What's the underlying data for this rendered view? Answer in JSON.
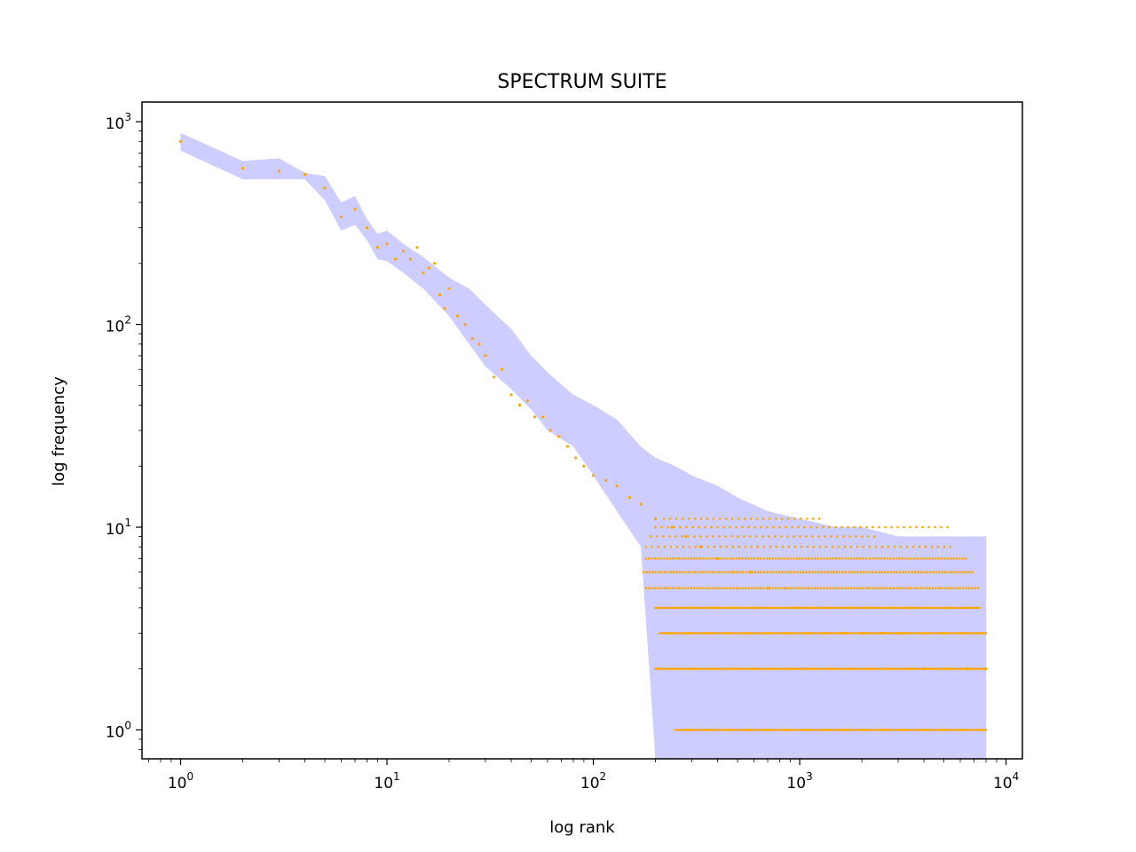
{
  "chart_data": {
    "type": "scatter",
    "title": "SPECTRUM SUITE",
    "xlabel": "log rank",
    "ylabel": "log frequency",
    "xscale": "log",
    "yscale": "log",
    "xlim": [
      0.65,
      12000
    ],
    "ylim": [
      0.72,
      1250
    ],
    "grid": false,
    "legend": "none",
    "x_tick_labels": [
      {
        "base": "10",
        "exp": "0",
        "value": 1
      },
      {
        "base": "10",
        "exp": "1",
        "value": 10
      },
      {
        "base": "10",
        "exp": "2",
        "value": 100
      },
      {
        "base": "10",
        "exp": "3",
        "value": 1000
      },
      {
        "base": "10",
        "exp": "4",
        "value": 10000
      }
    ],
    "y_tick_labels": [
      {
        "base": "10",
        "exp": "0",
        "value": 1
      },
      {
        "base": "10",
        "exp": "1",
        "value": 10
      },
      {
        "base": "10",
        "exp": "2",
        "value": 100
      },
      {
        "base": "10",
        "exp": "3",
        "value": 1000
      }
    ],
    "colors": {
      "points": "#ffa500",
      "band": "#c8c8ff",
      "axes": "#000000"
    },
    "series": [
      {
        "kind": "points",
        "x": [
          1,
          2,
          3,
          4,
          5,
          6,
          7,
          8,
          9,
          10,
          11,
          12,
          13,
          14,
          15,
          16,
          17,
          18,
          19,
          20,
          22,
          24,
          26,
          28,
          30,
          33,
          36,
          40,
          44,
          48,
          52,
          57,
          62,
          68,
          75,
          82,
          90,
          100,
          115,
          130,
          150,
          170,
          200,
          240,
          280,
          330,
          400,
          480,
          580,
          700,
          850,
          1000,
          1300,
          1600,
          2000,
          2500,
          3000,
          4000,
          5000,
          6500,
          8000
        ],
        "y": [
          800,
          590,
          570,
          550,
          470,
          340,
          370,
          300,
          240,
          250,
          210,
          230,
          210,
          240,
          180,
          190,
          200,
          140,
          120,
          150,
          110,
          100,
          85,
          80,
          70,
          55,
          60,
          45,
          40,
          42,
          35,
          35,
          30,
          28,
          25,
          22,
          20,
          18,
          17,
          16,
          14,
          13,
          11,
          10,
          9,
          8,
          7,
          6,
          6,
          5,
          5,
          4,
          4,
          3,
          3,
          3,
          3,
          2,
          2,
          2,
          2
        ]
      },
      {
        "kind": "band",
        "x": [
          1,
          2,
          3,
          4,
          5,
          6,
          7,
          8,
          9,
          10,
          12,
          15,
          20,
          25,
          30,
          40,
          50,
          60,
          80,
          100,
          130,
          170,
          200,
          250,
          300,
          400,
          500,
          700,
          1000,
          1500,
          2000,
          3000,
          5000,
          8000
        ],
        "upper": [
          880,
          640,
          660,
          560,
          540,
          400,
          430,
          330,
          280,
          290,
          250,
          215,
          170,
          150,
          125,
          95,
          70,
          58,
          45,
          40,
          34,
          25,
          22,
          20,
          18,
          16,
          14,
          12,
          11,
          10,
          10,
          9,
          9,
          9
        ],
        "lower": [
          720,
          520,
          520,
          520,
          410,
          290,
          310,
          260,
          210,
          205,
          180,
          150,
          110,
          80,
          62,
          48,
          38,
          30,
          25,
          18,
          12,
          8,
          0.72,
          0.72,
          0.72,
          0.72,
          0.72,
          0.72,
          0.72,
          0.72,
          0.72,
          0.72,
          0.72,
          0.72
        ]
      },
      {
        "kind": "discrete_points",
        "note": "dense plateaus of tied frequencies",
        "levels": [
          {
            "y": 1,
            "x_range": [
              250,
              8000
            ]
          },
          {
            "y": 2,
            "x_range": [
              200,
              8000
            ]
          },
          {
            "y": 3,
            "x_range": [
              210,
              8000
            ]
          },
          {
            "y": 4,
            "x_range": [
              200,
              7500
            ]
          },
          {
            "y": 5,
            "x_range": [
              180,
              7500
            ]
          },
          {
            "y": 6,
            "x_range": [
              175,
              7000
            ]
          },
          {
            "y": 7,
            "x_range": [
              180,
              6500
            ]
          },
          {
            "y": 8,
            "x_range": [
              180,
              5500
            ]
          },
          {
            "y": 9,
            "x_range": [
              190,
              2400
            ]
          },
          {
            "y": 10,
            "x_range": [
              200,
              5400
            ]
          },
          {
            "y": 11,
            "x_range": [
              220,
              1300
            ]
          }
        ]
      }
    ]
  }
}
